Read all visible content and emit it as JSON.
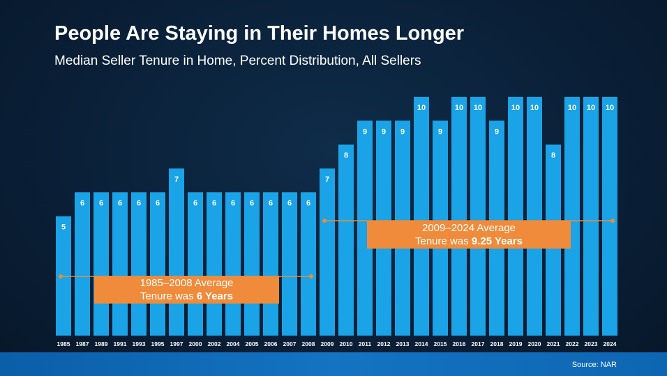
{
  "header": {
    "title": "People Are Staying in Their Homes Longer",
    "subtitle": "Median Seller Tenure in Home, Percent Distribution, All Sellers"
  },
  "footer": {
    "source": "Source: NAR"
  },
  "colors": {
    "bar": "#1aa3e6",
    "label": "#ffffff",
    "average_line": "#ef8b3a",
    "callout_bg": "#ef8b3a"
  },
  "averages": [
    {
      "line1": "1985–2008 Average",
      "line2_prefix": "Tenure was ",
      "line2_value": "6 Years",
      "start_year": "1985",
      "end_year": "2008",
      "value": 6
    },
    {
      "line1": "2009–2024 Average",
      "line2_prefix": "Tenure was ",
      "line2_value": "9.25 Years",
      "start_year": "2009",
      "end_year": "2024",
      "value": 9.25
    }
  ],
  "chart_data": {
    "type": "bar",
    "title": "People Are Staying in Their Homes Longer",
    "subtitle": "Median Seller Tenure in Home, Percent Distribution, All Sellers",
    "xlabel": "",
    "ylabel": "",
    "ylim": [
      0,
      10.6
    ],
    "grid": false,
    "categories": [
      "1985",
      "1987",
      "1989",
      "1991",
      "1993",
      "1995",
      "1997",
      "2000",
      "2002",
      "2004",
      "2005",
      "2006",
      "2007",
      "2008",
      "2009",
      "2010",
      "2011",
      "2012",
      "2013",
      "2014",
      "2015",
      "2016",
      "2017",
      "2018",
      "2019",
      "2020",
      "2021",
      "2022",
      "2023",
      "2024"
    ],
    "values": [
      5,
      6,
      6,
      6,
      6,
      6,
      7,
      6,
      6,
      6,
      6,
      6,
      6,
      6,
      7,
      8,
      9,
      9,
      9,
      10,
      9,
      10,
      10,
      9,
      10,
      10,
      8,
      10,
      10,
      10
    ]
  }
}
